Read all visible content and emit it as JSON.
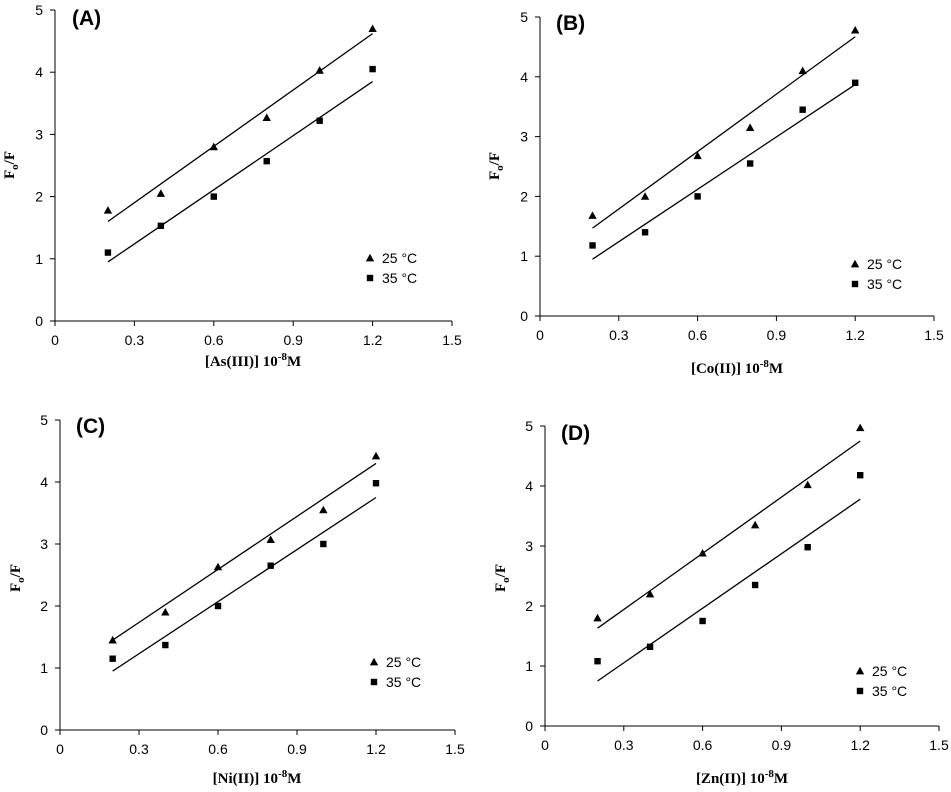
{
  "chart_data": [
    {
      "type": "scatter",
      "panel": "(A)",
      "xlabel": "[As(III)] 10",
      "xlabel_sup": "-8",
      "xlabel_unit": "M",
      "ylabel": "F",
      "ylabel_sub": "o",
      "ylabel_tail": "/F",
      "xlim": [
        0,
        1.5
      ],
      "ylim": [
        0,
        5
      ],
      "xticks": [
        "0",
        "0.3",
        "0.6",
        "0.9",
        "1.2",
        "1.5"
      ],
      "yticks": [
        "0",
        "1",
        "2",
        "3",
        "4",
        "5"
      ],
      "series": [
        {
          "name": "25 °C",
          "marker": "triangle",
          "x": [
            0.2,
            0.4,
            0.6,
            0.8,
            1.0,
            1.2
          ],
          "y": [
            1.78,
            2.05,
            2.8,
            3.27,
            4.03,
            4.7
          ],
          "fit": [
            [
              0.2,
              1.6
            ],
            [
              1.2,
              4.62
            ]
          ]
        },
        {
          "name": "35 °C",
          "marker": "square",
          "x": [
            0.2,
            0.4,
            0.6,
            0.8,
            1.0,
            1.2
          ],
          "y": [
            1.1,
            1.53,
            2.0,
            2.57,
            3.22,
            4.05
          ],
          "fit": [
            [
              0.2,
              0.95
            ],
            [
              1.2,
              3.85
            ]
          ]
        }
      ],
      "legend": "bottom-right"
    },
    {
      "type": "scatter",
      "panel": "(B)",
      "xlabel": "[Co(II)] 10",
      "xlabel_sup": "-8",
      "xlabel_unit": "M",
      "ylabel": "F",
      "ylabel_sub": "o",
      "ylabel_tail": "/F",
      "xlim": [
        0,
        1.5
      ],
      "ylim": [
        0,
        5
      ],
      "xticks": [
        "0",
        "0.3",
        "0.6",
        "0.9",
        "1.2",
        "1.5"
      ],
      "yticks": [
        "0",
        "1",
        "2",
        "3",
        "4",
        "5"
      ],
      "series": [
        {
          "name": "25 °C",
          "marker": "triangle",
          "x": [
            0.2,
            0.4,
            0.6,
            0.8,
            1.0,
            1.2
          ],
          "y": [
            1.68,
            2.0,
            2.68,
            3.15,
            4.1,
            4.78
          ],
          "fit": [
            [
              0.2,
              1.47
            ],
            [
              1.2,
              4.67
            ]
          ]
        },
        {
          "name": "35 °C",
          "marker": "square",
          "x": [
            0.2,
            0.4,
            0.6,
            0.8,
            1.0,
            1.2
          ],
          "y": [
            1.18,
            1.4,
            2.0,
            2.55,
            3.45,
            3.9
          ],
          "fit": [
            [
              0.2,
              0.95
            ],
            [
              1.2,
              3.87
            ]
          ]
        }
      ],
      "legend": "bottom-right"
    },
    {
      "type": "scatter",
      "panel": "(C)",
      "xlabel": "[Ni(II)] 10",
      "xlabel_sup": "-8",
      "xlabel_unit": "M",
      "ylabel": "F",
      "ylabel_sub": "o",
      "ylabel_tail": "/F",
      "xlim": [
        0,
        1.5
      ],
      "ylim": [
        0,
        5
      ],
      "xticks": [
        "0",
        "0.3",
        "0.6",
        "0.9",
        "1.2",
        "1.5"
      ],
      "yticks": [
        "0",
        "1",
        "2",
        "3",
        "4",
        "5"
      ],
      "series": [
        {
          "name": "25 °C",
          "marker": "triangle",
          "x": [
            0.2,
            0.4,
            0.6,
            0.8,
            1.0,
            1.2
          ],
          "y": [
            1.45,
            1.9,
            2.63,
            3.07,
            3.55,
            4.42
          ],
          "fit": [
            [
              0.2,
              1.45
            ],
            [
              1.2,
              4.3
            ]
          ]
        },
        {
          "name": "35 °C",
          "marker": "square",
          "x": [
            0.2,
            0.4,
            0.6,
            0.8,
            1.0,
            1.2
          ],
          "y": [
            1.15,
            1.37,
            2.0,
            2.65,
            3.0,
            3.98
          ],
          "fit": [
            [
              0.2,
              0.95
            ],
            [
              1.2,
              3.75
            ]
          ]
        }
      ],
      "legend": "bottom-right"
    },
    {
      "type": "scatter",
      "panel": "(D)",
      "xlabel": "[Zn(II)] 10",
      "xlabel_sup": "-8",
      "xlabel_unit": "M",
      "ylabel": "F",
      "ylabel_sub": "o",
      "ylabel_tail": "/F",
      "xlim": [
        0,
        1.5
      ],
      "ylim": [
        0,
        5
      ],
      "xticks": [
        "0",
        "0.3",
        "0.6",
        "0.9",
        "1.2",
        "1.5"
      ],
      "yticks": [
        "0",
        "1",
        "2",
        "3",
        "4",
        "5"
      ],
      "series": [
        {
          "name": "25 °C",
          "marker": "triangle",
          "x": [
            0.2,
            0.4,
            0.6,
            0.8,
            1.0,
            1.2
          ],
          "y": [
            1.8,
            2.2,
            2.88,
            3.35,
            4.02,
            4.97
          ],
          "fit": [
            [
              0.2,
              1.63
            ],
            [
              1.2,
              4.75
            ]
          ]
        },
        {
          "name": "35 °C",
          "marker": "square",
          "x": [
            0.2,
            0.4,
            0.6,
            0.8,
            1.0,
            1.2
          ],
          "y": [
            1.08,
            1.32,
            1.75,
            2.35,
            2.98,
            4.18
          ],
          "fit": [
            [
              0.2,
              0.75
            ],
            [
              1.2,
              3.78
            ]
          ]
        }
      ],
      "legend": "bottom-right"
    }
  ]
}
